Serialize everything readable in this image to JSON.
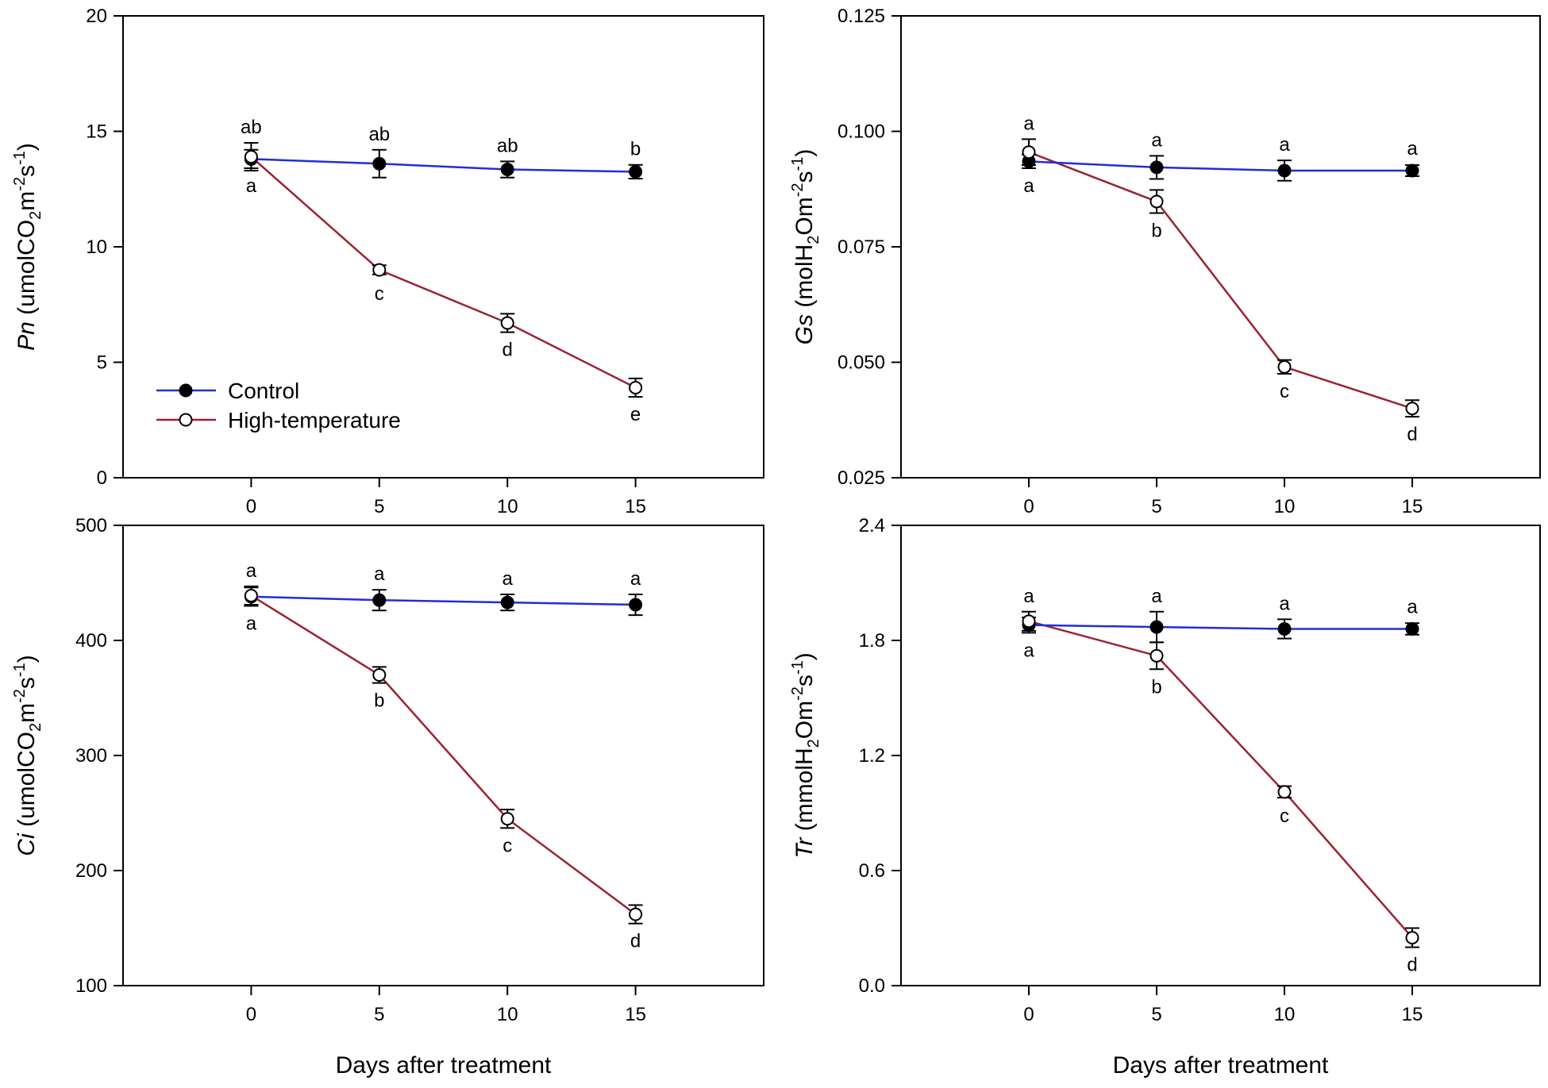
{
  "colors": {
    "control": "#1f2fd6",
    "high_temperature": "#9b2330",
    "axis": "#000000",
    "marker": "#000000"
  },
  "legend": {
    "control": "Control",
    "high_temperature": "High-temperature"
  },
  "chart_data": [
    {
      "id": "pn",
      "type": "line",
      "title": "",
      "ylabel": {
        "symbol": "Pn",
        "parts": [
          " (umolCO",
          "2",
          "m",
          "-2",
          "s",
          "-1",
          ")"
        ]
      },
      "xlabel": "",
      "xlim": [
        -5,
        20
      ],
      "ylim": [
        0,
        20
      ],
      "xticks": [
        "0",
        "5",
        "10",
        "15"
      ],
      "xtick_values": [
        0,
        5,
        10,
        15
      ],
      "yticks": [
        "0",
        "5",
        "10",
        "15",
        "20"
      ],
      "ytick_values": [
        0,
        5,
        10,
        15,
        20
      ],
      "x": [
        0,
        5,
        10,
        15
      ],
      "series": [
        {
          "name": "Control",
          "values": [
            13.8,
            13.6,
            13.35,
            13.25
          ],
          "errors": [
            0.4,
            0.6,
            0.35,
            0.3
          ],
          "labels": [
            "a",
            "ab",
            "ab",
            "b"
          ],
          "label_pos": [
            "below",
            "above",
            "above",
            "above"
          ]
        },
        {
          "name": "High-temperature",
          "values": [
            13.9,
            9.0,
            6.7,
            3.9
          ],
          "errors": [
            0.6,
            0.2,
            0.4,
            0.4
          ],
          "labels": [
            "ab",
            "c",
            "d",
            "e"
          ],
          "label_pos": [
            "above",
            "below",
            "below",
            "below"
          ]
        }
      ]
    },
    {
      "id": "gs",
      "type": "line",
      "title": "",
      "ylabel": {
        "symbol": "Gs",
        "parts": [
          " (molH",
          "2",
          "Om",
          "-2",
          "s",
          "-1",
          ")"
        ]
      },
      "xlabel": "",
      "xlim": [
        -5,
        20
      ],
      "ylim": [
        0.025,
        0.125
      ],
      "xticks": [
        "0",
        "5",
        "10",
        "15"
      ],
      "xtick_values": [
        0,
        5,
        10,
        15
      ],
      "yticks": [
        "0.025",
        "0.050",
        "0.075",
        "0.100",
        "0.125"
      ],
      "ytick_values": [
        0.025,
        0.05,
        0.075,
        0.1,
        0.125
      ],
      "x": [
        0,
        5,
        10,
        15
      ],
      "series": [
        {
          "name": "Control",
          "values": [
            0.0935,
            0.0922,
            0.0915,
            0.0915
          ],
          "errors": [
            0.0015,
            0.0025,
            0.0022,
            0.0012
          ],
          "labels": [
            "a",
            "a",
            "a",
            "a"
          ],
          "label_pos": [
            "below",
            "above",
            "above",
            "above"
          ]
        },
        {
          "name": "High-temperature",
          "values": [
            0.0955,
            0.0848,
            0.049,
            0.04
          ],
          "errors": [
            0.0028,
            0.0025,
            0.0015,
            0.0018
          ],
          "labels": [
            "a",
            "b",
            "c",
            "d"
          ],
          "label_pos": [
            "above",
            "below",
            "below",
            "below"
          ]
        }
      ]
    },
    {
      "id": "ci",
      "type": "line",
      "title": "",
      "ylabel": {
        "symbol": "Ci",
        "parts": [
          " (umolCO",
          "2",
          "m",
          "-2",
          "s",
          "-1",
          ")"
        ]
      },
      "xlabel": "Days after treatment",
      "xlim": [
        -5,
        20
      ],
      "ylim": [
        100,
        500
      ],
      "xticks": [
        "0",
        "5",
        "10",
        "15"
      ],
      "xtick_values": [
        0,
        5,
        10,
        15
      ],
      "yticks": [
        "100",
        "200",
        "300",
        "400",
        "500"
      ],
      "ytick_values": [
        100,
        200,
        300,
        400,
        500
      ],
      "x": [
        0,
        5,
        10,
        15
      ],
      "series": [
        {
          "name": "Control",
          "values": [
            438,
            435,
            433,
            431
          ],
          "errors": [
            8,
            9,
            7,
            9
          ],
          "labels": [
            "a",
            "a",
            "a",
            "a"
          ],
          "label_pos": [
            "below",
            "above",
            "above",
            "above"
          ]
        },
        {
          "name": "High-temperature",
          "values": [
            439,
            370,
            245,
            162
          ],
          "errors": [
            8,
            7,
            8,
            8
          ],
          "labels": [
            "a",
            "b",
            "c",
            "d"
          ],
          "label_pos": [
            "above",
            "below",
            "below",
            "below"
          ]
        }
      ]
    },
    {
      "id": "tr",
      "type": "line",
      "title": "",
      "ylabel": {
        "symbol": "Tr",
        "parts": [
          " (mmolH",
          "2",
          "Om",
          "-2",
          "s",
          "-1",
          ")"
        ]
      },
      "xlabel": "Days after treatment",
      "xlim": [
        -5,
        20
      ],
      "ylim": [
        0.0,
        2.4
      ],
      "xticks": [
        "0",
        "5",
        "10",
        "15"
      ],
      "xtick_values": [
        0,
        5,
        10,
        15
      ],
      "yticks": [
        "0.0",
        "0.6",
        "1.2",
        "1.8",
        "2.4"
      ],
      "ytick_values": [
        0.0,
        0.6,
        1.2,
        1.8,
        2.4
      ],
      "x": [
        0,
        5,
        10,
        15
      ],
      "series": [
        {
          "name": "Control",
          "values": [
            1.88,
            1.87,
            1.86,
            1.86
          ],
          "errors": [
            0.04,
            0.08,
            0.05,
            0.03
          ],
          "labels": [
            "a",
            "a",
            "a",
            "a"
          ],
          "label_pos": [
            "below",
            "above",
            "above",
            "above"
          ]
        },
        {
          "name": "High-temperature",
          "values": [
            1.9,
            1.72,
            1.01,
            0.25
          ],
          "errors": [
            0.05,
            0.07,
            0.03,
            0.05
          ],
          "labels": [
            "a",
            "b",
            "c",
            "d"
          ],
          "label_pos": [
            "above",
            "below",
            "below",
            "below"
          ]
        }
      ]
    }
  ]
}
